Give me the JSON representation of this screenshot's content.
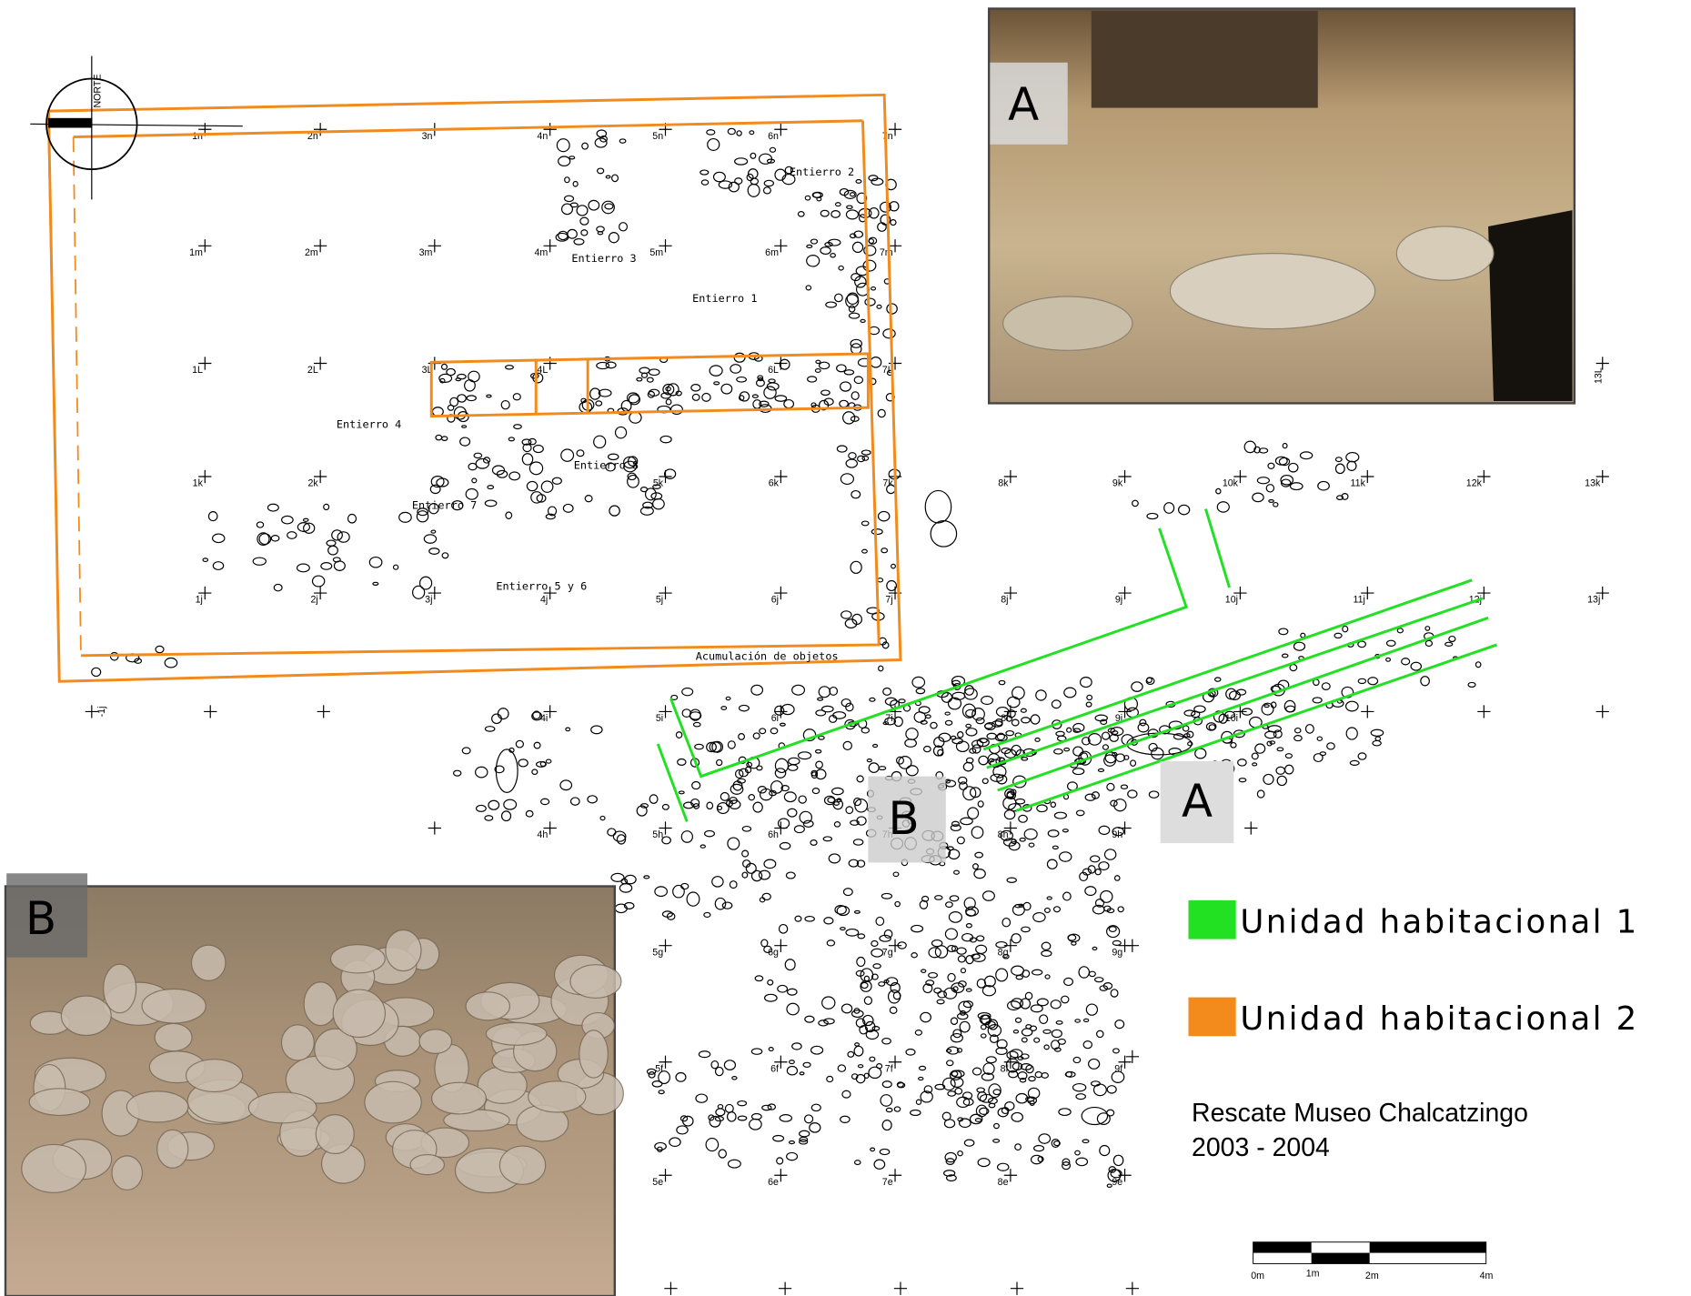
{
  "map": {
    "grid_labels": [
      [
        "",
        "1n",
        "2n",
        "3n",
        "4n",
        "5n",
        "6n",
        "7n",
        null,
        null,
        null,
        null,
        null,
        null
      ],
      [
        null,
        "1m",
        "2m",
        "3m",
        "4m",
        "5m",
        "6m",
        "7m",
        null,
        null,
        null,
        null,
        null,
        null
      ],
      [
        null,
        "1L",
        "2L",
        "3L",
        "4L",
        null,
        "6L",
        "7L",
        null,
        null,
        null,
        null,
        null,
        "13L"
      ],
      [
        null,
        "1k",
        "2k",
        null,
        null,
        "5k",
        "6k",
        "7k",
        "8k",
        "9k",
        "10k",
        "11k",
        "12k",
        "13k"
      ],
      [
        null,
        "1j",
        "2j",
        "3j",
        "4j",
        "5j",
        "6j",
        "7j",
        "8j",
        "9j",
        "10j",
        "11j",
        "12j",
        "13j"
      ],
      [
        "-1j",
        null,
        null,
        null,
        "4i",
        "5i",
        "6i",
        "7i",
        "8i",
        "9i",
        "10i",
        null,
        null,
        null
      ],
      [
        null,
        null,
        null,
        null,
        "4h",
        "5h",
        "6h",
        "7h",
        "8h",
        "9h",
        null,
        null,
        null,
        null
      ],
      [
        null,
        null,
        null,
        null,
        null,
        "5g",
        "6g",
        "7g",
        "8g",
        "9g",
        null,
        null,
        null,
        null
      ],
      [
        null,
        null,
        null,
        null,
        null,
        "5f",
        "6f",
        "7f",
        "8f",
        "9f",
        null,
        null,
        null,
        null
      ],
      [
        null,
        null,
        null,
        null,
        null,
        "5e",
        "6e",
        "7e",
        "8e",
        "9e",
        null,
        null,
        null,
        null
      ]
    ],
    "north": "NORTE",
    "burials": [
      "Entierro 1",
      "Entierro 2",
      "Entierro 3",
      "Entierro 4",
      "Entierro 7",
      "Entierro 8",
      "Entierro 5 y 6",
      "Acumulación de objetos"
    ],
    "photo_a_label": "A",
    "photo_b_label": "B",
    "marker_a": "A",
    "marker_b": "B",
    "legend": [
      {
        "name": "Unidad habitacional 1",
        "color": "#22e022"
      },
      {
        "name": "Unidad habitacional 2",
        "color": "#f28a1c"
      }
    ],
    "project": "Rescate Museo Chalcatzingo",
    "years": "2003 - 2004",
    "scale_labels": [
      "0m",
      "1m",
      "2m",
      "4m"
    ]
  }
}
